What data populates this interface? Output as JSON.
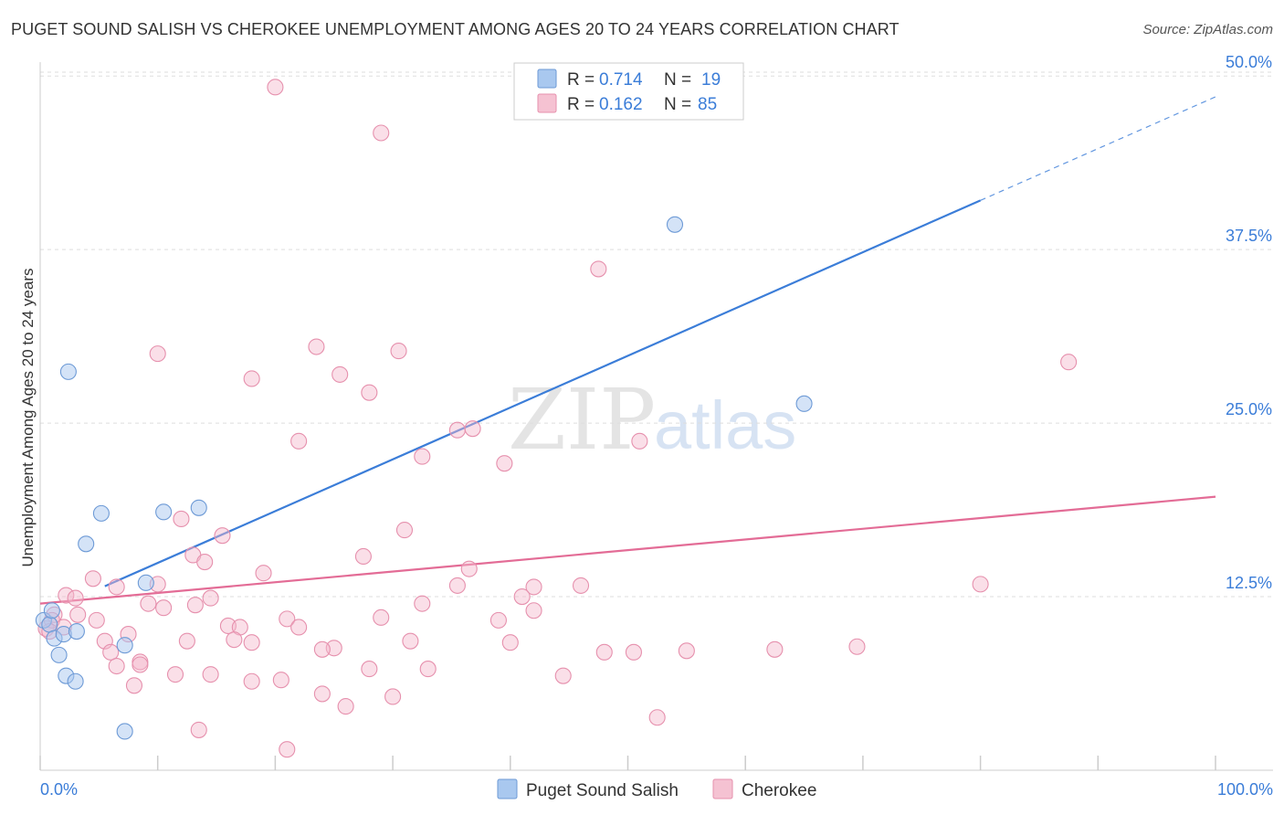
{
  "title": "PUGET SOUND SALISH VS CHEROKEE UNEMPLOYMENT AMONG AGES 20 TO 24 YEARS CORRELATION CHART",
  "source": "Source: ZipAtlas.com",
  "watermark": {
    "zip": "ZIP",
    "atlas": "atlas"
  },
  "colors": {
    "blue": "#3b7dd8",
    "blue_fill": "#a9c8ef",
    "pink": "#e36c96",
    "pink_fill": "#f5b9cb",
    "grid": "#dddddd",
    "axis_text": "#3b7dd8"
  },
  "legend": {
    "rows": [
      {
        "r_label": "R =",
        "r_value": "0.714",
        "n_label": "N =",
        "n_value": "19"
      },
      {
        "r_label": "R =",
        "r_value": "0.162",
        "n_label": "N =",
        "n_value": "85"
      }
    ]
  },
  "bottom_legend": [
    "Puget Sound Salish",
    "Cherokee"
  ],
  "chart_data": {
    "type": "scatter",
    "title": "PUGET SOUND SALISH VS CHEROKEE UNEMPLOYMENT AMONG AGES 20 TO 24 YEARS CORRELATION CHART",
    "xlabel": "",
    "ylabel": "Unemployment Among Ages 20 to 24 years",
    "xlim": [
      0,
      100
    ],
    "ylim": [
      0,
      51
    ],
    "x_tick_labels": [
      "0.0%",
      "100.0%"
    ],
    "y_ticks": [
      12.5,
      25.0,
      37.5,
      50.0
    ],
    "y_tick_labels": [
      "12.5%",
      "25.0%",
      "37.5%",
      "50.0%"
    ],
    "grid": true,
    "legend_position": "top-center",
    "series": [
      {
        "name": "Puget Sound Salish",
        "R": 0.714,
        "N": 19,
        "trend": {
          "x0": 0,
          "y0": 11.2,
          "x1": 100,
          "y1": 48.5,
          "solid_until_x": 80
        },
        "points": [
          [
            0.3,
            10.8
          ],
          [
            0.8,
            10.5
          ],
          [
            1.0,
            11.5
          ],
          [
            1.2,
            9.5
          ],
          [
            1.6,
            8.3
          ],
          [
            2.0,
            9.8
          ],
          [
            2.2,
            6.8
          ],
          [
            3.0,
            6.4
          ],
          [
            3.1,
            10.0
          ],
          [
            2.4,
            28.7
          ],
          [
            5.2,
            18.5
          ],
          [
            3.9,
            16.3
          ],
          [
            7.2,
            2.8
          ],
          [
            7.2,
            9.0
          ],
          [
            9.0,
            13.5
          ],
          [
            10.5,
            18.6
          ],
          [
            13.5,
            18.9
          ],
          [
            54.0,
            39.3
          ],
          [
            65.0,
            26.4
          ]
        ]
      },
      {
        "name": "Cherokee",
        "R": 0.162,
        "N": 85,
        "trend": {
          "x0": 0,
          "y0": 12.0,
          "x1": 100,
          "y1": 19.7
        },
        "points": [
          [
            20.0,
            49.2
          ],
          [
            29.0,
            45.9
          ],
          [
            47.5,
            36.1
          ],
          [
            87.5,
            29.4
          ],
          [
            10.0,
            30.0
          ],
          [
            23.5,
            30.5
          ],
          [
            25.5,
            28.5
          ],
          [
            30.5,
            30.2
          ],
          [
            18.0,
            28.2
          ],
          [
            28.0,
            27.2
          ],
          [
            35.5,
            24.5
          ],
          [
            36.8,
            24.6
          ],
          [
            22.0,
            23.7
          ],
          [
            51.0,
            23.7
          ],
          [
            39.5,
            22.1
          ],
          [
            32.5,
            22.6
          ],
          [
            31.0,
            17.3
          ],
          [
            12.0,
            18.1
          ],
          [
            15.5,
            16.9
          ],
          [
            13.0,
            15.5
          ],
          [
            27.5,
            15.4
          ],
          [
            14.0,
            15.0
          ],
          [
            19.0,
            14.2
          ],
          [
            36.5,
            14.5
          ],
          [
            42.0,
            13.2
          ],
          [
            35.5,
            13.3
          ],
          [
            46.0,
            13.3
          ],
          [
            80.0,
            13.4
          ],
          [
            4.5,
            13.8
          ],
          [
            6.5,
            13.2
          ],
          [
            10.0,
            13.4
          ],
          [
            2.2,
            12.6
          ],
          [
            3.0,
            12.4
          ],
          [
            9.2,
            12.0
          ],
          [
            14.5,
            12.4
          ],
          [
            41.0,
            12.5
          ],
          [
            32.5,
            12.0
          ],
          [
            10.5,
            11.7
          ],
          [
            13.2,
            11.9
          ],
          [
            42.0,
            11.5
          ],
          [
            1.2,
            11.2
          ],
          [
            3.2,
            11.2
          ],
          [
            0.5,
            10.2
          ],
          [
            1.0,
            10.8
          ],
          [
            4.8,
            10.8
          ],
          [
            16.0,
            10.4
          ],
          [
            17.0,
            10.3
          ],
          [
            21.0,
            10.9
          ],
          [
            22.0,
            10.3
          ],
          [
            29.0,
            11.0
          ],
          [
            39.0,
            10.8
          ],
          [
            7.5,
            9.8
          ],
          [
            12.5,
            9.3
          ],
          [
            16.5,
            9.4
          ],
          [
            18.0,
            9.2
          ],
          [
            5.5,
            9.3
          ],
          [
            6.0,
            8.5
          ],
          [
            25.0,
            8.8
          ],
          [
            24.0,
            8.7
          ],
          [
            31.5,
            9.3
          ],
          [
            40.0,
            9.2
          ],
          [
            48.0,
            8.5
          ],
          [
            50.5,
            8.5
          ],
          [
            55.0,
            8.6
          ],
          [
            62.5,
            8.7
          ],
          [
            69.5,
            8.9
          ],
          [
            8.5,
            7.8
          ],
          [
            6.5,
            7.5
          ],
          [
            8.5,
            7.6
          ],
          [
            11.5,
            6.9
          ],
          [
            14.5,
            6.9
          ],
          [
            18.0,
            6.4
          ],
          [
            20.5,
            6.5
          ],
          [
            28.0,
            7.3
          ],
          [
            33.0,
            7.3
          ],
          [
            44.5,
            6.8
          ],
          [
            8.0,
            6.1
          ],
          [
            24.0,
            5.5
          ],
          [
            26.0,
            4.6
          ],
          [
            30.0,
            5.3
          ],
          [
            13.5,
            2.9
          ],
          [
            21.0,
            1.5
          ],
          [
            52.5,
            3.8
          ],
          [
            0.8,
            10.0
          ],
          [
            2.0,
            10.3
          ]
        ]
      }
    ]
  }
}
